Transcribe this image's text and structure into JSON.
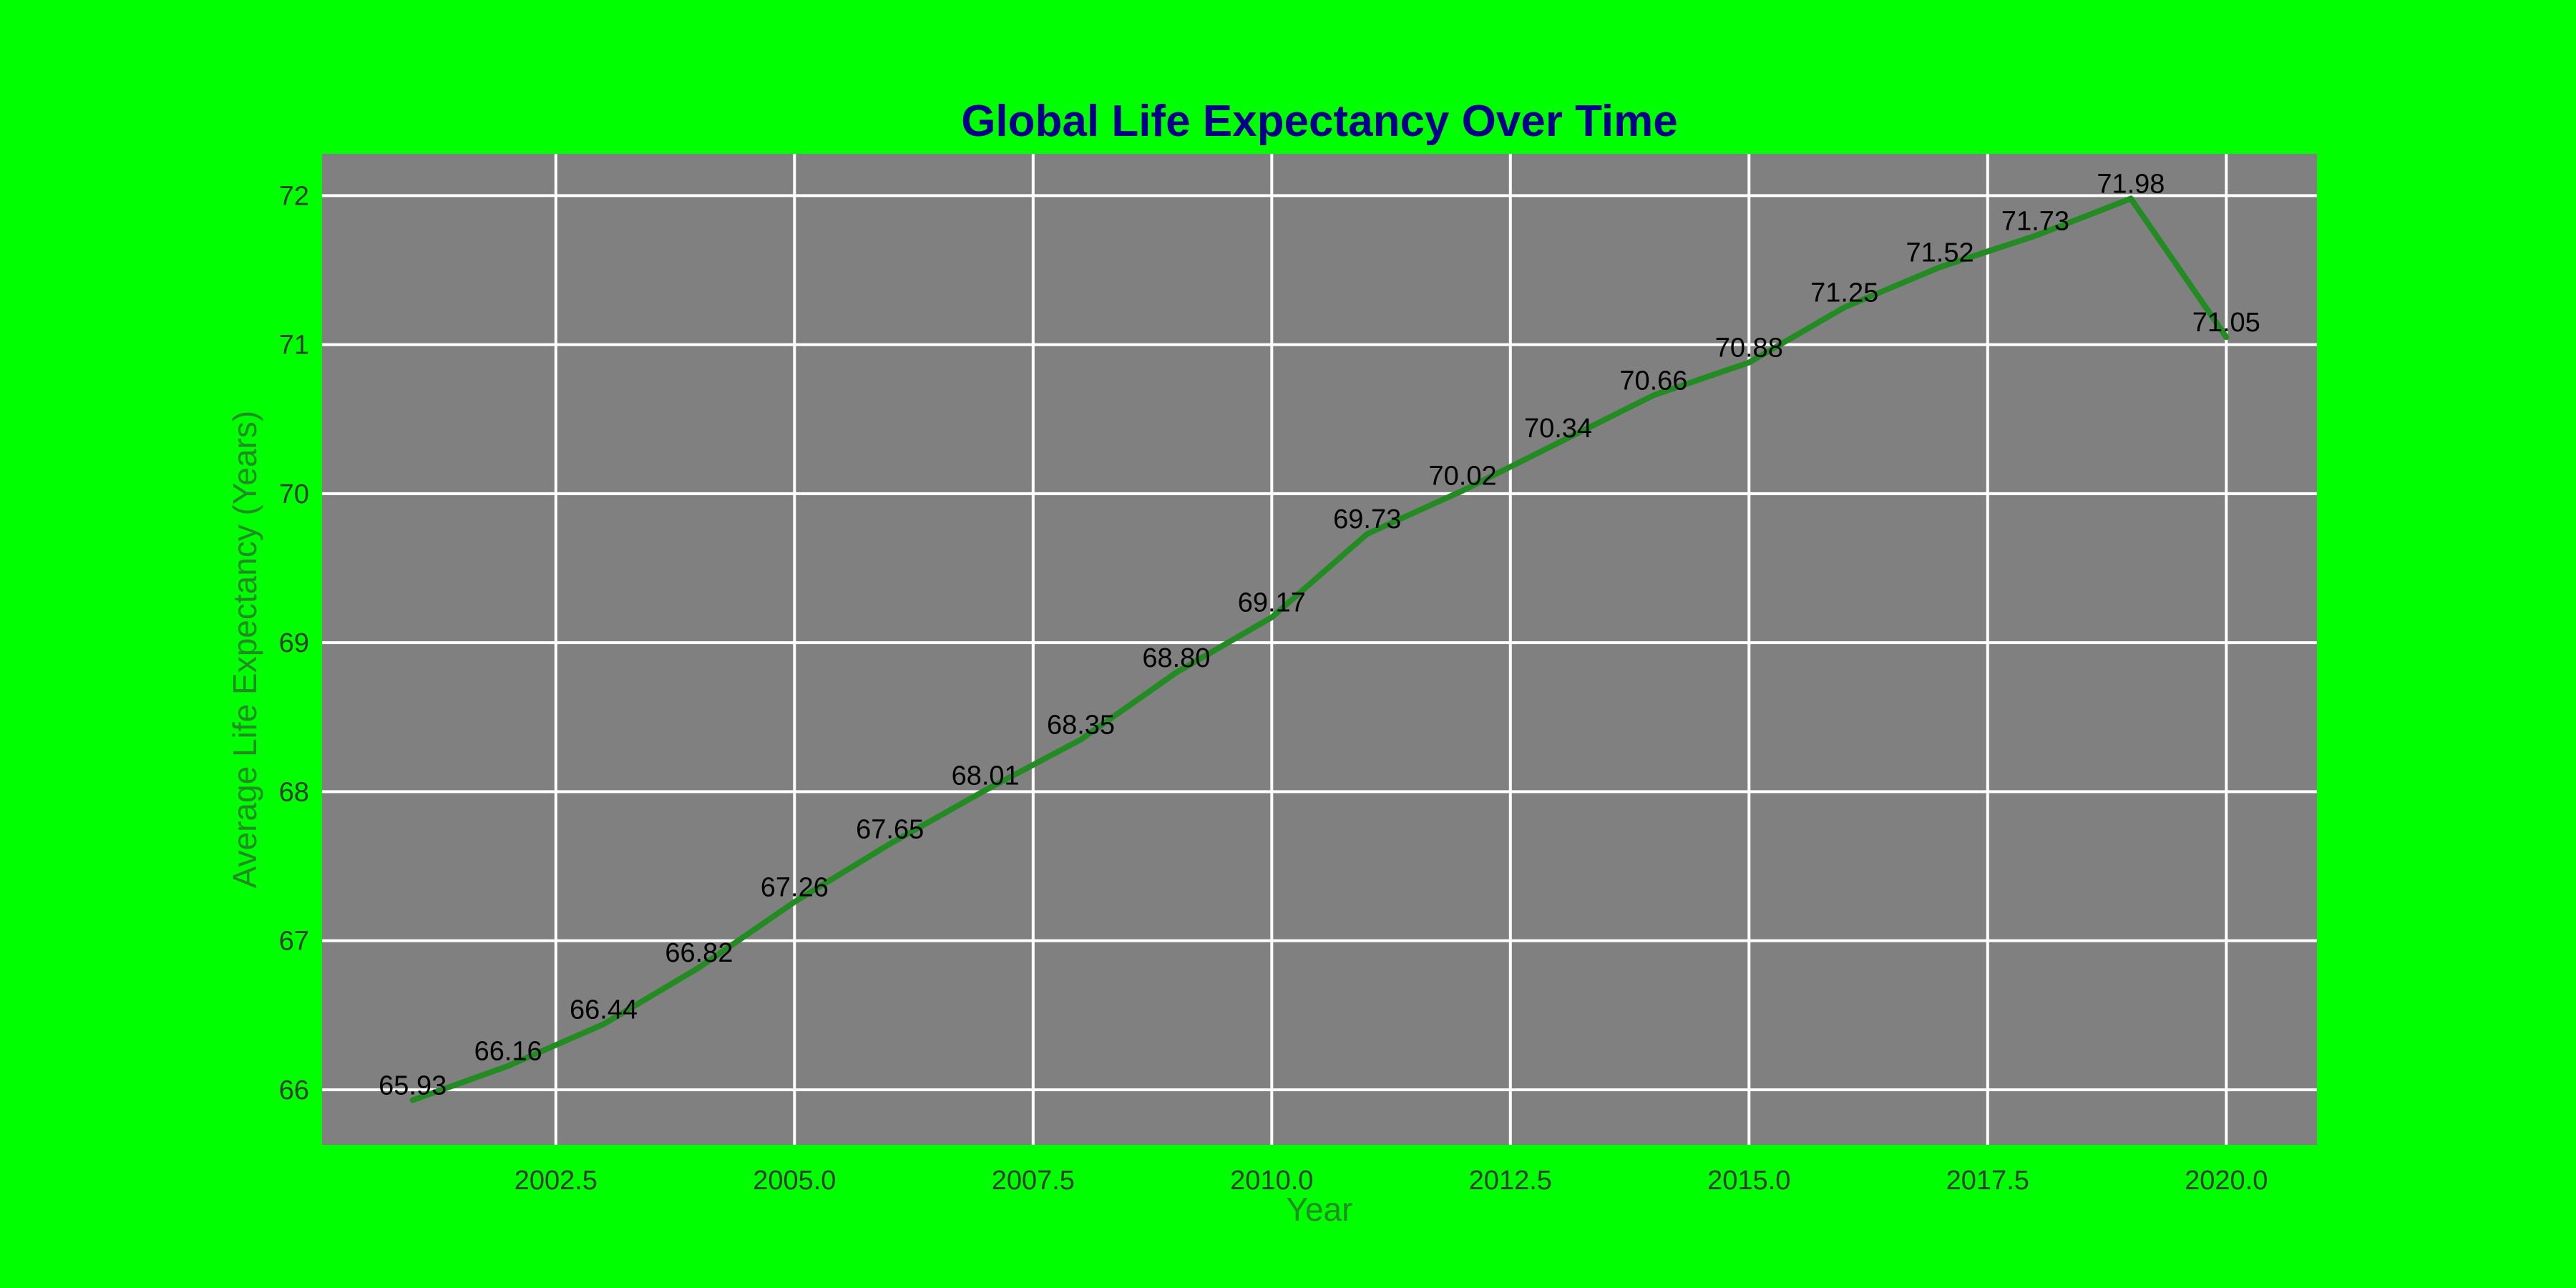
{
  "chart_data": {
    "type": "line",
    "title": "Global Life Expectancy Over Time",
    "xlabel": "Year",
    "ylabel": "Average Life Expectancy (Years)",
    "xlim": [
      2000.05,
      2020.95
    ],
    "ylim": [
      65.63,
      72.28
    ],
    "x_ticks": [
      2002.5,
      2005.0,
      2007.5,
      2010.0,
      2012.5,
      2015.0,
      2017.5,
      2020.0
    ],
    "x_tick_labels": [
      "2002.5",
      "2005.0",
      "2007.5",
      "2010.0",
      "2012.5",
      "2015.0",
      "2017.5",
      "2020.0"
    ],
    "y_ticks": [
      66,
      67,
      68,
      69,
      70,
      71,
      72
    ],
    "y_tick_labels": [
      "66",
      "67",
      "68",
      "69",
      "70",
      "71",
      "72"
    ],
    "grid": true,
    "series": [
      {
        "x": [
          2001,
          2002,
          2003,
          2004,
          2005,
          2006,
          2007,
          2008,
          2009,
          2010,
          2011,
          2012,
          2013,
          2014,
          2015,
          2016,
          2017,
          2018,
          2019,
          2020
        ],
        "values": [
          65.93,
          66.16,
          66.44,
          66.82,
          67.26,
          67.65,
          68.01,
          68.35,
          68.8,
          69.17,
          69.73,
          70.02,
          70.34,
          70.66,
          70.88,
          71.25,
          71.52,
          71.73,
          71.98,
          71.05
        ],
        "labels": [
          "65.93",
          "66.16",
          "66.44",
          "66.82",
          "67.26",
          "67.65",
          "68.01",
          "68.35",
          "68.80",
          "69.17",
          "69.73",
          "70.02",
          "70.34",
          "70.66",
          "70.88",
          "71.25",
          "71.52",
          "71.73",
          "71.98",
          "71.05"
        ]
      }
    ],
    "colors": {
      "background": "#00ff00",
      "plot_background": "#808080",
      "grid": "#ffffff",
      "line": "#228b22",
      "title": "#00008b",
      "axis_label": "#228b22",
      "data_label": "#000000"
    }
  }
}
